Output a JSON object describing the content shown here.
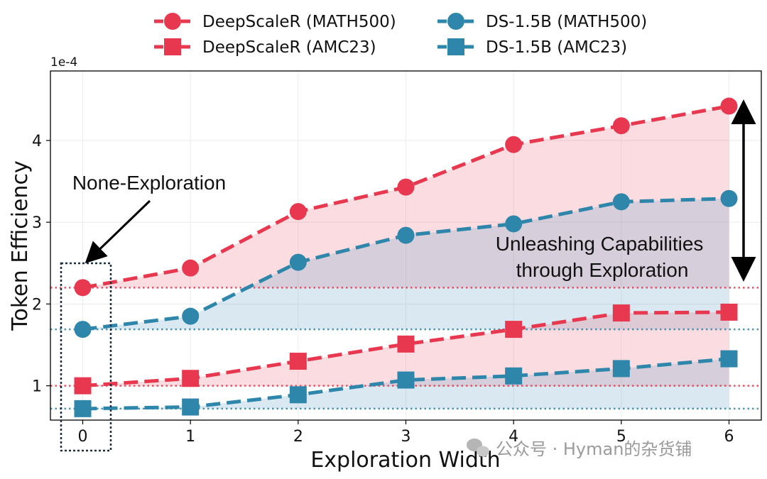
{
  "chart_data": {
    "type": "line",
    "xlabel": "Exploration Width",
    "ylabel": "Token Efficiency",
    "y_exponent": "1e-4",
    "x": [
      0,
      1,
      2,
      3,
      4,
      5,
      6
    ],
    "xticks": [
      "0",
      "1",
      "2",
      "3",
      "4",
      "5",
      "6"
    ],
    "yticks": [
      "1",
      "2",
      "3",
      "4"
    ],
    "xlim": [
      -0.3,
      6.3
    ],
    "ylim": [
      0.58,
      4.85
    ],
    "grid": true,
    "legend_position": "top",
    "series": [
      {
        "name": "DeepScaleR (MATH500)",
        "color": "#e8384f",
        "marker": "circle",
        "values": [
          2.2,
          2.44,
          3.13,
          3.43,
          3.95,
          4.18,
          4.42
        ]
      },
      {
        "name": "DeepScaleR (AMC23)",
        "color": "#e8384f",
        "marker": "square",
        "values": [
          1.0,
          1.09,
          1.3,
          1.51,
          1.69,
          1.89,
          1.9
        ]
      },
      {
        "name": "DS-1.5B (MATH500)",
        "color": "#2e86ab",
        "marker": "circle",
        "values": [
          1.69,
          1.85,
          2.51,
          2.84,
          2.98,
          3.25,
          3.29
        ]
      },
      {
        "name": "DS-1.5B (AMC23)",
        "color": "#2e86ab",
        "marker": "square",
        "values": [
          0.72,
          0.74,
          0.89,
          1.07,
          1.12,
          1.21,
          1.33
        ]
      }
    ],
    "annotations": [
      {
        "text": "None-Exploration"
      },
      {
        "text": "Unleashing Capabilities\nthrough Exploration"
      }
    ]
  },
  "watermark": "公众号 · Hyman的杂货铺"
}
